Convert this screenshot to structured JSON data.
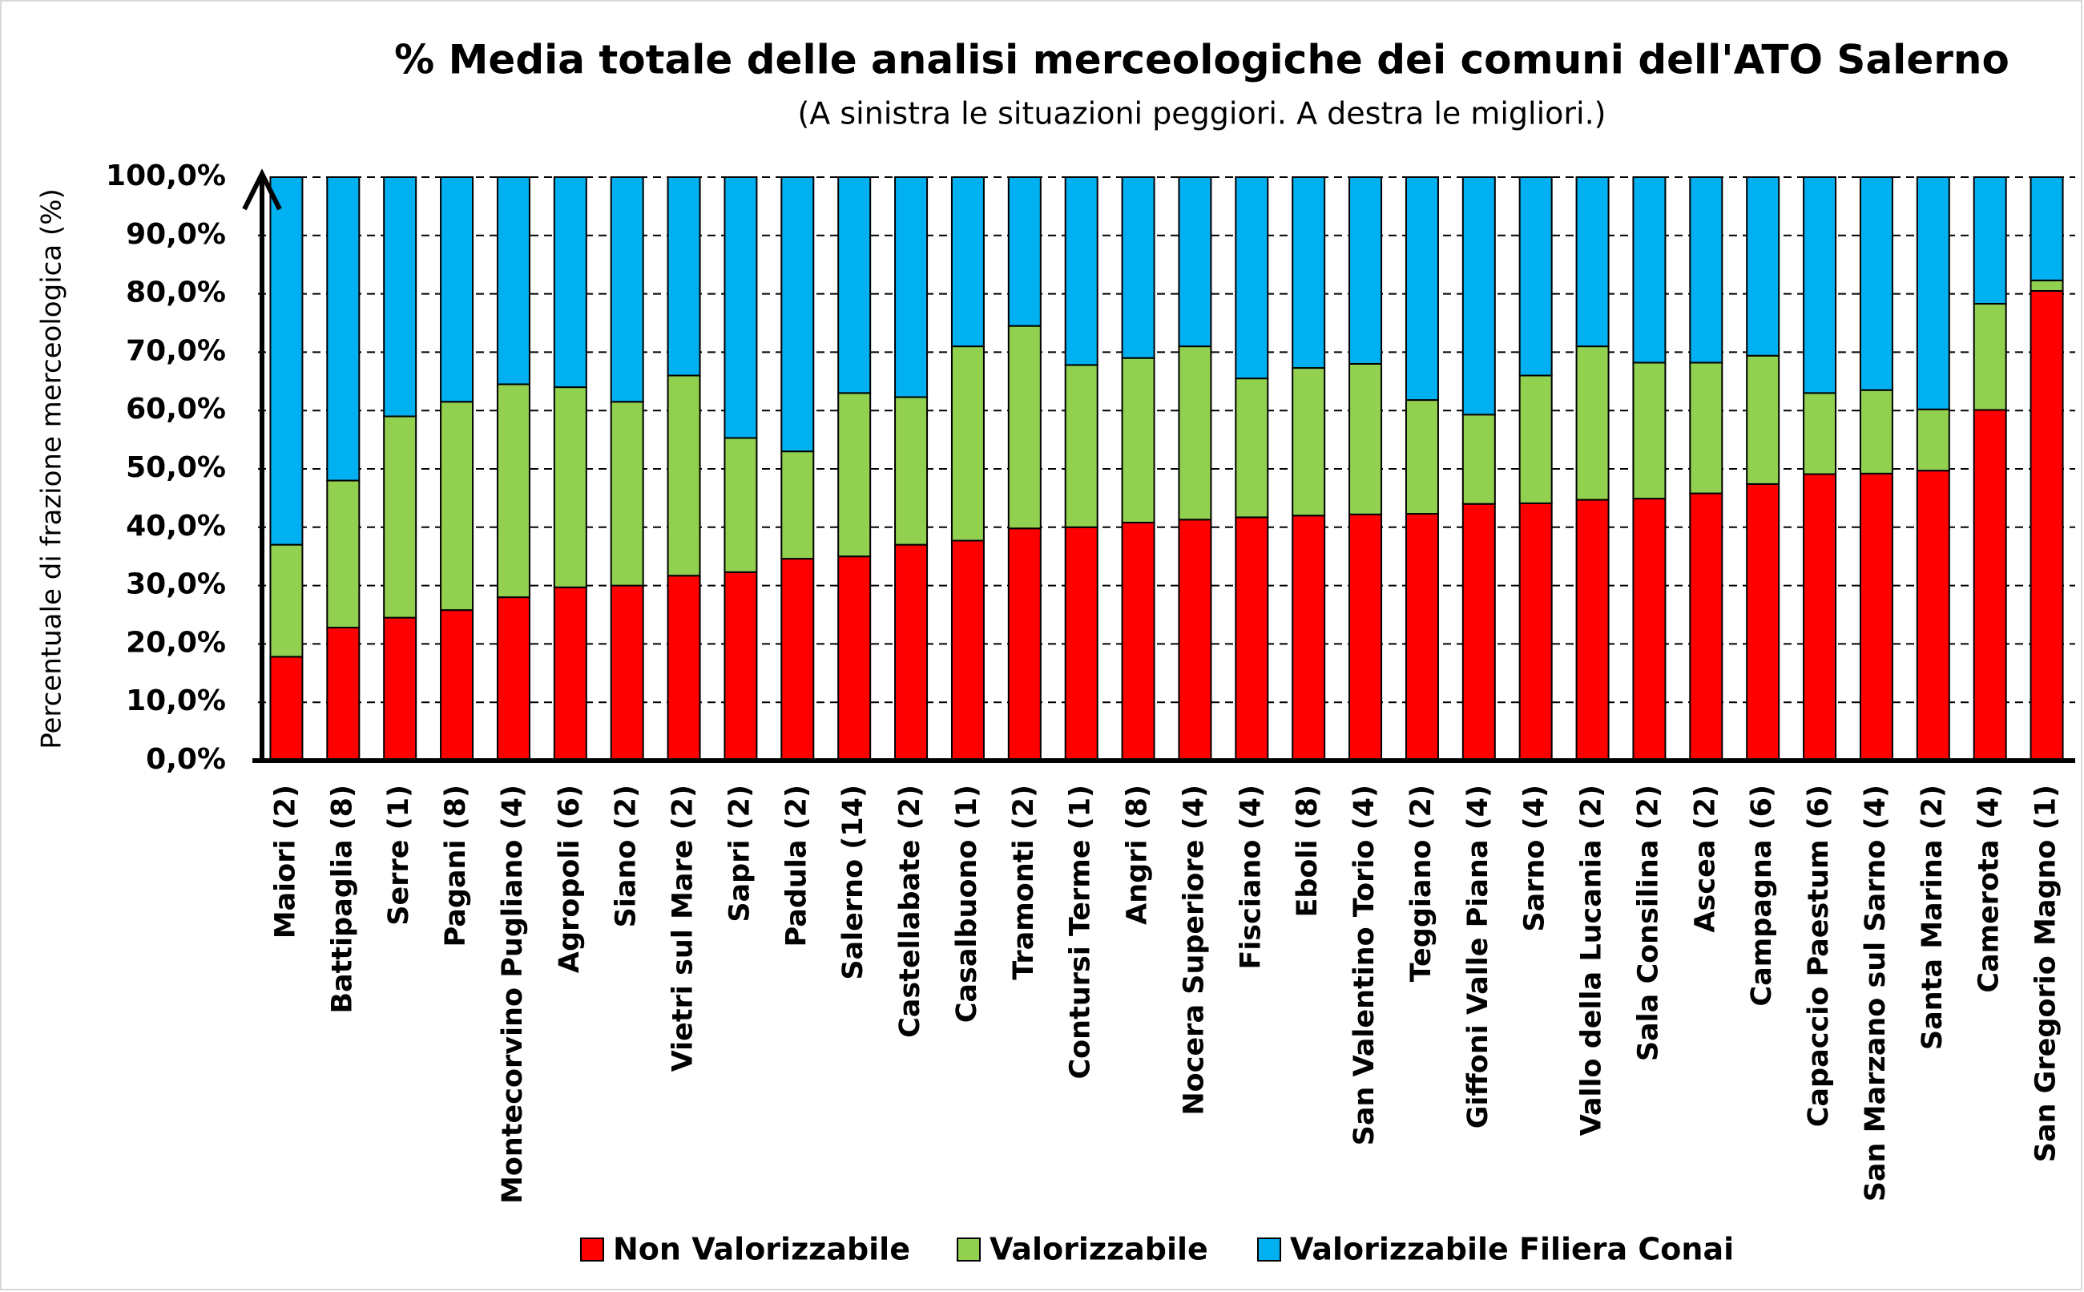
{
  "chart_data": {
    "type": "stacked_bar",
    "title": "% Media totale delle analisi merceologiche dei comuni dell'ATO Salerno",
    "subtitle": "(A sinistra le situazioni peggiori. A destra le migliori.)",
    "y_label": "Percentuale di frazione merceologica (%)",
    "categories": [
      "Maiori (2)",
      "Battipaglia (8)",
      "Serre (1)",
      "Pagani (8)",
      "Montecorvino Pugliano (4)",
      "Agropoli (6)",
      "Siano (2)",
      "Vietri sul Mare (2)",
      "Sapri (2)",
      "Padula (2)",
      "Salerno (14)",
      "Castellabate (2)",
      "Casalbuono (1)",
      "Tramonti (2)",
      "Contursi Terme (1)",
      "Angri (8)",
      "Nocera Superiore (4)",
      "Fisciano (4)",
      "Eboli (8)",
      "San Valentino Torio (4)",
      "Teggiano (2)",
      "Giffoni Valle Piana (4)",
      "Sarno (4)",
      "Vallo della Lucania (2)",
      "Sala Consilina (2)",
      "Ascea (2)",
      "Campagna (6)",
      "Capaccio Paestum (6)",
      "San Marzano sul Sarno (4)",
      "Santa Marina (2)",
      "Camerota (4)",
      "San Gregorio Magno (1)"
    ],
    "series": [
      {
        "name": "Non Valorizzabile",
        "color": "#ff0000",
        "values": [
          17.8,
          22.8,
          24.5,
          25.8,
          28,
          29.7,
          30,
          31.7,
          32.3,
          34.6,
          35,
          37,
          37.7,
          39.8,
          40,
          40.8,
          41.3,
          41.7,
          42,
          42.2,
          42.3,
          44,
          44.1,
          44.7,
          44.9,
          45.8,
          47.4,
          49.1,
          49.2,
          49.7,
          60.1,
          80.5
        ]
      },
      {
        "name": "Valorizzabile",
        "color": "#92d050",
        "values": [
          19.2,
          25.2,
          34.5,
          35.7,
          36.5,
          34.3,
          31.5,
          34.3,
          23,
          18.4,
          28,
          25.3,
          33.3,
          34.7,
          27.8,
          28.2,
          29.7,
          23.8,
          25.3,
          25.8,
          19.5,
          15.3,
          21.9,
          26.3,
          23.3,
          22.4,
          22,
          13.9,
          14.3,
          10.5,
          18.2,
          1.8
        ]
      },
      {
        "name": "Valorizzabile Filiera Conai",
        "color": "#00b0f0",
        "values": [
          63,
          52,
          41,
          38.5,
          35.5,
          36,
          38.5,
          34,
          44.7,
          47,
          37,
          37.7,
          29,
          25.5,
          32.2,
          31,
          29,
          34.5,
          32.7,
          32,
          38.2,
          40.7,
          34,
          29,
          31.8,
          31.8,
          30.6,
          37,
          36.5,
          39.8,
          21.7,
          17.7
        ]
      }
    ],
    "ylim": [
      0,
      100
    ],
    "yticks": [
      {
        "value": 0,
        "label": "0,0%"
      },
      {
        "value": 10,
        "label": "10,0%"
      },
      {
        "value": 20,
        "label": "20,0%"
      },
      {
        "value": 30,
        "label": "30,0%"
      },
      {
        "value": 40,
        "label": "40,0%"
      },
      {
        "value": 50,
        "label": "50,0%"
      },
      {
        "value": 60,
        "label": "60,0%"
      },
      {
        "value": 70,
        "label": "70,0%"
      },
      {
        "value": 80,
        "label": "80,0%"
      },
      {
        "value": 90,
        "label": "90,0%"
      },
      {
        "value": 100,
        "label": "100,0%"
      }
    ],
    "grid": true,
    "legend": "bottom"
  }
}
